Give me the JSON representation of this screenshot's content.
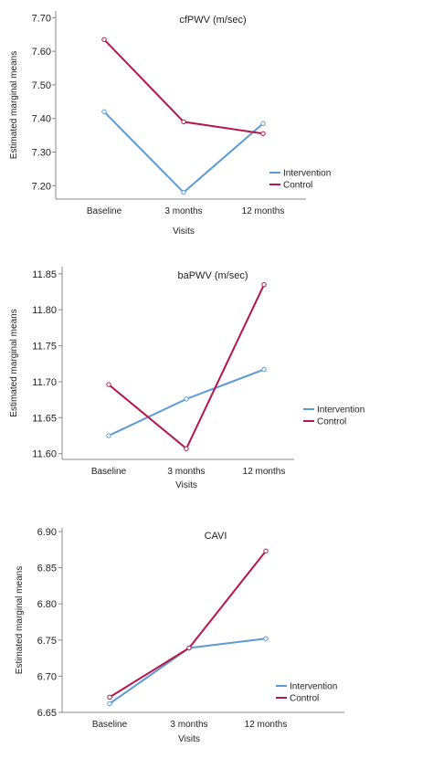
{
  "chart_data": [
    {
      "type": "line",
      "title": "cfPWV (m/sec)",
      "xlabel": "Visits",
      "ylabel": "Estimated marginal means",
      "categories": [
        "Baseline",
        "3 months",
        "12 months"
      ],
      "yticks": [
        "7.20",
        "7.30",
        "7.40",
        "7.50",
        "7.60",
        "7.70"
      ],
      "ylim": [
        7.16,
        7.72
      ],
      "legend_position": "right",
      "series": [
        {
          "name": "Intervention",
          "color": "#5b9bd5",
          "values": [
            7.42,
            7.18,
            7.385
          ]
        },
        {
          "name": "Control",
          "color": "#b5164b",
          "values": [
            7.635,
            7.39,
            7.355
          ]
        }
      ]
    },
    {
      "type": "line",
      "title": "baPWV (m/sec)",
      "xlabel": "Visits",
      "ylabel": "Estimated marginal means",
      "categories": [
        "Baseline",
        "3 months",
        "12 months"
      ],
      "yticks": [
        "11.60",
        "11.65",
        "11.70",
        "11.75",
        "11.80",
        "11.85"
      ],
      "ylim": [
        11.592,
        11.86
      ],
      "legend_position": "right",
      "series": [
        {
          "name": "Intervention",
          "color": "#5b9bd5",
          "values": [
            11.625,
            11.676,
            11.717
          ]
        },
        {
          "name": "Control",
          "color": "#b5164b",
          "values": [
            11.696,
            11.607,
            11.835
          ]
        }
      ]
    },
    {
      "type": "line",
      "title": "CAVI",
      "xlabel": "Visits",
      "ylabel": "Estimated marginal means",
      "categories": [
        "Baseline",
        "3 months",
        "12 months"
      ],
      "yticks": [
        "6.65",
        "6.70",
        "6.75",
        "6.80",
        "6.85",
        "6.90"
      ],
      "ylim": [
        6.65,
        6.905
      ],
      "legend_position": "right",
      "series": [
        {
          "name": "Intervention",
          "color": "#5b9bd5",
          "values": [
            6.662,
            6.739,
            6.752
          ]
        },
        {
          "name": "Control",
          "color": "#b5164b",
          "values": [
            6.671,
            6.739,
            6.873
          ]
        }
      ]
    }
  ]
}
